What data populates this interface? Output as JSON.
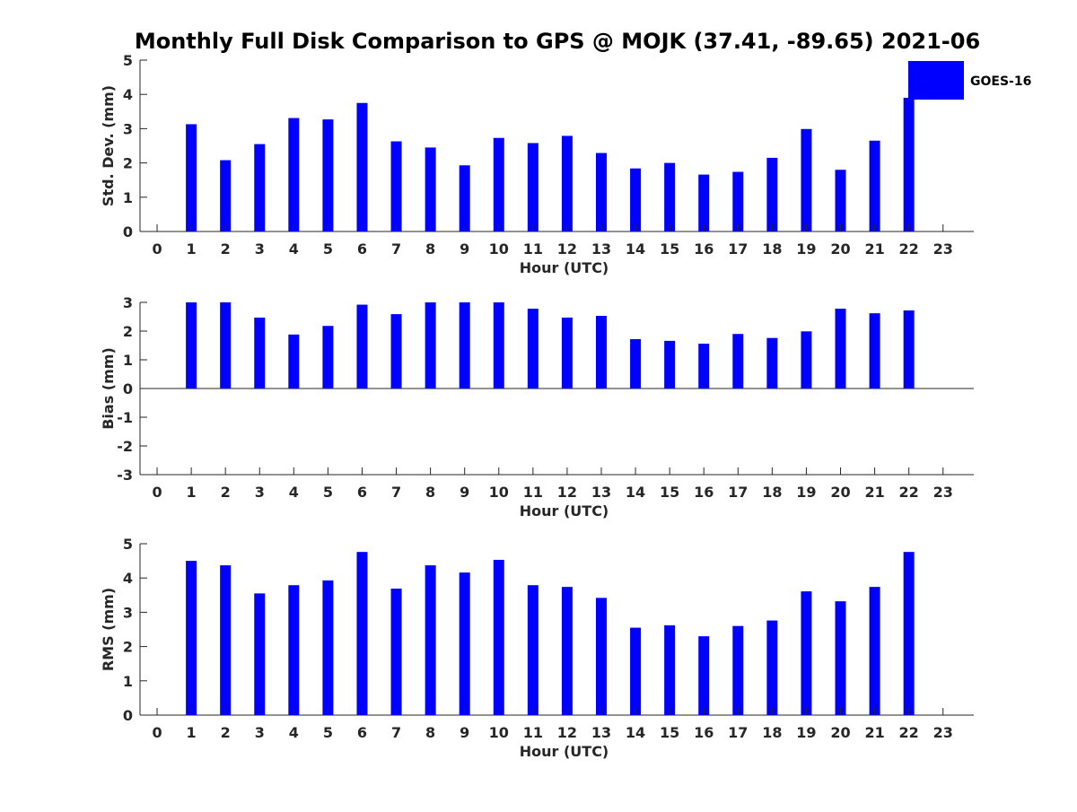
{
  "colors": {
    "bar": "#0000ff",
    "axis": "#262626",
    "background": "#ffffff"
  },
  "chart_data": [
    {
      "type": "bar",
      "title": "Monthly Full Disk Comparison to GPS @ MOJK (37.41, -89.65) 2021-06",
      "xlabel": "Hour (UTC)",
      "ylabel": "Std. Dev. (mm)",
      "ylim": [
        0,
        5
      ],
      "yticks": [
        "0",
        "1",
        "2",
        "3",
        "4",
        "5"
      ],
      "x": [
        0,
        1,
        2,
        3,
        4,
        5,
        6,
        7,
        8,
        9,
        10,
        11,
        12,
        13,
        14,
        15,
        16,
        17,
        18,
        19,
        20,
        21,
        22,
        23
      ],
      "series": [
        {
          "name": "GOES-16",
          "values": [
            null,
            3.13,
            2.08,
            2.55,
            3.31,
            3.27,
            3.75,
            2.63,
            2.45,
            1.93,
            2.73,
            2.58,
            2.79,
            2.29,
            1.84,
            2.0,
            1.66,
            1.74,
            2.15,
            2.99,
            1.8,
            2.65,
            3.9,
            null
          ]
        }
      ],
      "legend": {
        "label": "GOES-16",
        "placement": "top-right"
      },
      "grid": false
    },
    {
      "type": "bar",
      "title": "",
      "xlabel": "Hour (UTC)",
      "ylabel": "Bias (mm)",
      "ylim": [
        -3,
        3
      ],
      "yticks": [
        "-3",
        "-2",
        "-1",
        "0",
        "1",
        "2",
        "3"
      ],
      "x": [
        0,
        1,
        2,
        3,
        4,
        5,
        6,
        7,
        8,
        9,
        10,
        11,
        12,
        13,
        14,
        15,
        16,
        17,
        18,
        19,
        20,
        21,
        22,
        23
      ],
      "series": [
        {
          "values": [
            null,
            3.0,
            3.0,
            2.47,
            1.88,
            2.18,
            2.92,
            2.59,
            3.0,
            3.0,
            3.0,
            2.78,
            2.47,
            2.53,
            1.72,
            1.66,
            1.56,
            1.9,
            1.76,
            1.99,
            2.78,
            2.62,
            2.72,
            null
          ]
        }
      ],
      "grid": false
    },
    {
      "type": "bar",
      "title": "",
      "xlabel": "Hour (UTC)",
      "ylabel": "RMS (mm)",
      "ylim": [
        0,
        5
      ],
      "yticks": [
        "0",
        "1",
        "2",
        "3",
        "4",
        "5"
      ],
      "x": [
        0,
        1,
        2,
        3,
        4,
        5,
        6,
        7,
        8,
        9,
        10,
        11,
        12,
        13,
        14,
        15,
        16,
        17,
        18,
        19,
        20,
        21,
        22,
        23
      ],
      "series": [
        {
          "values": [
            null,
            4.5,
            4.37,
            3.55,
            3.79,
            3.93,
            4.76,
            3.69,
            4.37,
            4.16,
            4.53,
            3.79,
            3.74,
            3.42,
            2.55,
            2.62,
            2.3,
            2.6,
            2.76,
            3.61,
            3.32,
            3.74,
            4.76,
            null
          ]
        }
      ],
      "grid": false
    }
  ]
}
